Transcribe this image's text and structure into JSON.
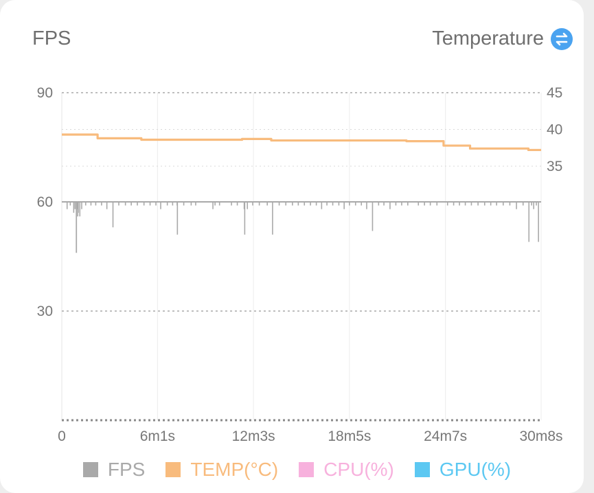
{
  "header": {
    "left_title": "FPS",
    "right_title": "Temperature",
    "toggle_icon": "swap-icon"
  },
  "colors": {
    "fps": "#a9a9a9",
    "temp": "#f8bb7d",
    "cpu": "#f7b1dd",
    "gpu": "#5cc8f2"
  },
  "chart_data": {
    "type": "line",
    "x_unit": "seconds",
    "x_range": [
      0,
      1808
    ],
    "x_ticks": [
      {
        "value": 0,
        "label": "0"
      },
      {
        "value": 361,
        "label": "6m1s"
      },
      {
        "value": 723,
        "label": "12m3s"
      },
      {
        "value": 1085,
        "label": "18m5s"
      },
      {
        "value": 1447,
        "label": "24m7s"
      },
      {
        "value": 1808,
        "label": "30m8s"
      }
    ],
    "y_left": {
      "range": [
        0,
        90
      ],
      "ticks": [
        30,
        60,
        90
      ],
      "tick_labels": [
        "30",
        "60",
        "90"
      ]
    },
    "y_right": {
      "range": [
        20,
        45
      ],
      "ticks": [
        35,
        40,
        45
      ],
      "tick_labels": [
        "35",
        "40",
        "45"
      ]
    },
    "legend": [
      {
        "label": "FPS",
        "color": "#a9a9a9"
      },
      {
        "label": "TEMP(°C)",
        "color": "#f8bb7d"
      },
      {
        "label": "CPU(%)",
        "color": "#f7b1dd"
      },
      {
        "label": "GPU(%)",
        "color": "#5cc8f2"
      }
    ],
    "series": [
      {
        "name": "TEMP(°C)",
        "axis": "right",
        "x": [
          0,
          135,
          135,
          300,
          300,
          680,
          680,
          790,
          790,
          1300,
          1300,
          1440,
          1440,
          1540,
          1540,
          1760,
          1760,
          1808
        ],
        "y": [
          39.3,
          39.3,
          38.8,
          38.8,
          38.6,
          38.6,
          38.7,
          38.7,
          38.5,
          38.5,
          38.4,
          38.4,
          37.8,
          37.8,
          37.4,
          37.4,
          37.2,
          37.2
        ]
      },
      {
        "name": "FPS",
        "axis": "left",
        "baseline": 60,
        "dips": [
          {
            "x": 20,
            "y": 58
          },
          {
            "x": 32,
            "y": 59
          },
          {
            "x": 45,
            "y": 57
          },
          {
            "x": 50,
            "y": 58
          },
          {
            "x": 58,
            "y": 58
          },
          {
            "x": 60,
            "y": 56
          },
          {
            "x": 62,
            "y": 57
          },
          {
            "x": 68,
            "y": 56
          },
          {
            "x": 75,
            "y": 58
          },
          {
            "x": 90,
            "y": 59
          },
          {
            "x": 110,
            "y": 59
          },
          {
            "x": 128,
            "y": 59
          },
          {
            "x": 150,
            "y": 59
          },
          {
            "x": 170,
            "y": 58
          },
          {
            "x": 193,
            "y": 53
          },
          {
            "x": 215,
            "y": 59
          },
          {
            "x": 240,
            "y": 59
          },
          {
            "x": 262,
            "y": 59
          },
          {
            "x": 285,
            "y": 59
          },
          {
            "x": 310,
            "y": 59
          },
          {
            "x": 333,
            "y": 59
          },
          {
            "x": 355,
            "y": 59
          },
          {
            "x": 373,
            "y": 58
          },
          {
            "x": 398,
            "y": 59
          },
          {
            "x": 418,
            "y": 59
          },
          {
            "x": 435,
            "y": 59
          },
          {
            "x": 436,
            "y": 51
          },
          {
            "x": 460,
            "y": 59
          },
          {
            "x": 488,
            "y": 59
          },
          {
            "x": 505,
            "y": 59
          },
          {
            "x": 570,
            "y": 58
          },
          {
            "x": 578,
            "y": 59
          },
          {
            "x": 595,
            "y": 59
          },
          {
            "x": 640,
            "y": 59
          },
          {
            "x": 662,
            "y": 59
          },
          {
            "x": 688,
            "y": 58
          },
          {
            "x": 690,
            "y": 51
          },
          {
            "x": 700,
            "y": 58
          },
          {
            "x": 720,
            "y": 59
          },
          {
            "x": 745,
            "y": 59
          },
          {
            "x": 775,
            "y": 59
          },
          {
            "x": 795,
            "y": 51
          },
          {
            "x": 820,
            "y": 59
          },
          {
            "x": 845,
            "y": 59
          },
          {
            "x": 870,
            "y": 59
          },
          {
            "x": 892,
            "y": 59
          },
          {
            "x": 915,
            "y": 59
          },
          {
            "x": 938,
            "y": 59
          },
          {
            "x": 960,
            "y": 59
          },
          {
            "x": 980,
            "y": 58
          },
          {
            "x": 1000,
            "y": 59
          },
          {
            "x": 1022,
            "y": 59
          },
          {
            "x": 1045,
            "y": 59
          },
          {
            "x": 1065,
            "y": 58
          },
          {
            "x": 1085,
            "y": 59
          },
          {
            "x": 1108,
            "y": 59
          },
          {
            "x": 1130,
            "y": 59
          },
          {
            "x": 1150,
            "y": 58
          },
          {
            "x": 1172,
            "y": 52
          },
          {
            "x": 1195,
            "y": 59
          },
          {
            "x": 1215,
            "y": 59
          },
          {
            "x": 1238,
            "y": 58
          },
          {
            "x": 1260,
            "y": 59
          },
          {
            "x": 1282,
            "y": 59
          },
          {
            "x": 1305,
            "y": 59
          },
          {
            "x": 1345,
            "y": 59
          },
          {
            "x": 1368,
            "y": 59
          },
          {
            "x": 1390,
            "y": 59
          },
          {
            "x": 1415,
            "y": 59
          },
          {
            "x": 1455,
            "y": 59
          },
          {
            "x": 1478,
            "y": 59
          },
          {
            "x": 1500,
            "y": 59
          },
          {
            "x": 1522,
            "y": 59
          },
          {
            "x": 1545,
            "y": 59
          },
          {
            "x": 1570,
            "y": 59
          },
          {
            "x": 1595,
            "y": 59
          },
          {
            "x": 1618,
            "y": 59
          },
          {
            "x": 1640,
            "y": 59
          },
          {
            "x": 1665,
            "y": 59
          },
          {
            "x": 1690,
            "y": 59
          },
          {
            "x": 1715,
            "y": 58
          },
          {
            "x": 1740,
            "y": 59
          },
          {
            "x": 1762,
            "y": 49
          },
          {
            "x": 1772,
            "y": 59
          },
          {
            "x": 1780,
            "y": 58
          },
          {
            "x": 1790,
            "y": 59
          },
          {
            "x": 1798,
            "y": 49
          }
        ]
      }
    ],
    "major_dip": {
      "x": 55,
      "y": 46
    },
    "grid": true,
    "legend_position": "bottom"
  }
}
